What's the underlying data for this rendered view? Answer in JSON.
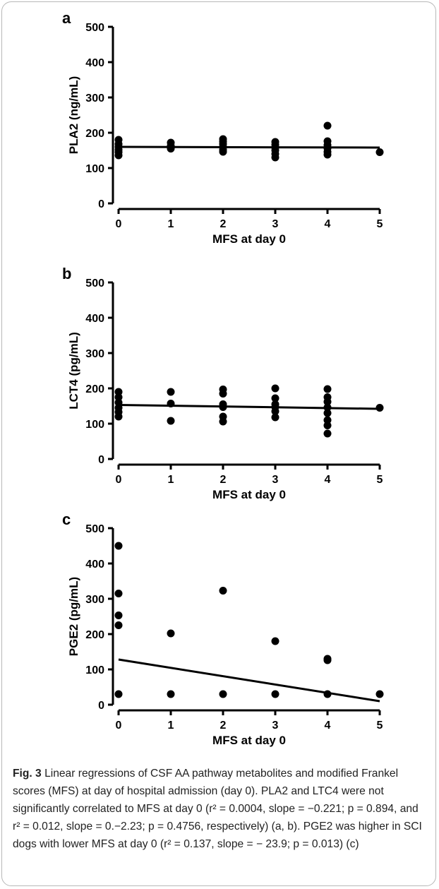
{
  "chart_data": [
    {
      "type": "scatter",
      "panel": "a",
      "xlabel": "MFS at day 0",
      "ylabel": "PLA2 (ng/mL)",
      "xlim": [
        0,
        5
      ],
      "ylim": [
        0,
        500
      ],
      "xticks": [
        0,
        1,
        2,
        3,
        4,
        5
      ],
      "yticks": [
        0,
        100,
        200,
        300,
        400,
        500
      ],
      "points": [
        {
          "x": 0,
          "y": 180
        },
        {
          "x": 0,
          "y": 168
        },
        {
          "x": 0,
          "y": 160
        },
        {
          "x": 0,
          "y": 152
        },
        {
          "x": 0,
          "y": 145
        },
        {
          "x": 0,
          "y": 136
        },
        {
          "x": 1,
          "y": 172
        },
        {
          "x": 1,
          "y": 163
        },
        {
          "x": 1,
          "y": 155
        },
        {
          "x": 2,
          "y": 182
        },
        {
          "x": 2,
          "y": 175
        },
        {
          "x": 2,
          "y": 168
        },
        {
          "x": 2,
          "y": 160
        },
        {
          "x": 2,
          "y": 152
        },
        {
          "x": 2,
          "y": 146
        },
        {
          "x": 3,
          "y": 174
        },
        {
          "x": 3,
          "y": 166
        },
        {
          "x": 3,
          "y": 158
        },
        {
          "x": 3,
          "y": 150
        },
        {
          "x": 3,
          "y": 140
        },
        {
          "x": 3,
          "y": 130
        },
        {
          "x": 4,
          "y": 220
        },
        {
          "x": 4,
          "y": 176
        },
        {
          "x": 4,
          "y": 165
        },
        {
          "x": 4,
          "y": 156
        },
        {
          "x": 4,
          "y": 146
        },
        {
          "x": 4,
          "y": 138
        },
        {
          "x": 5,
          "y": 145
        }
      ],
      "regression": {
        "x": [
          0,
          5
        ],
        "y": [
          160,
          158
        ]
      }
    },
    {
      "type": "scatter",
      "panel": "b",
      "xlabel": "MFS at day 0",
      "ylabel": "LCT4 (pg/mL)",
      "xlim": [
        0,
        5
      ],
      "ylim": [
        0,
        500
      ],
      "xticks": [
        0,
        1,
        2,
        3,
        4,
        5
      ],
      "yticks": [
        0,
        100,
        200,
        300,
        400,
        500
      ],
      "points": [
        {
          "x": 0,
          "y": 190
        },
        {
          "x": 0,
          "y": 175
        },
        {
          "x": 0,
          "y": 160
        },
        {
          "x": 0,
          "y": 145
        },
        {
          "x": 0,
          "y": 133
        },
        {
          "x": 0,
          "y": 120
        },
        {
          "x": 1,
          "y": 190
        },
        {
          "x": 1,
          "y": 157
        },
        {
          "x": 1,
          "y": 108
        },
        {
          "x": 2,
          "y": 197
        },
        {
          "x": 2,
          "y": 185
        },
        {
          "x": 2,
          "y": 155
        },
        {
          "x": 2,
          "y": 147
        },
        {
          "x": 2,
          "y": 120
        },
        {
          "x": 2,
          "y": 106
        },
        {
          "x": 3,
          "y": 200
        },
        {
          "x": 3,
          "y": 172
        },
        {
          "x": 3,
          "y": 155
        },
        {
          "x": 3,
          "y": 147
        },
        {
          "x": 3,
          "y": 135
        },
        {
          "x": 3,
          "y": 118
        },
        {
          "x": 4,
          "y": 198
        },
        {
          "x": 4,
          "y": 175
        },
        {
          "x": 4,
          "y": 162
        },
        {
          "x": 4,
          "y": 146
        },
        {
          "x": 4,
          "y": 130
        },
        {
          "x": 4,
          "y": 110
        },
        {
          "x": 4,
          "y": 95
        },
        {
          "x": 4,
          "y": 72
        },
        {
          "x": 5,
          "y": 145
        }
      ],
      "regression": {
        "x": [
          0,
          5
        ],
        "y": [
          153,
          142
        ]
      }
    },
    {
      "type": "scatter",
      "panel": "c",
      "xlabel": "MFS at day 0",
      "ylabel": "PGE2 (pg/mL)",
      "xlim": [
        0,
        5
      ],
      "ylim": [
        0,
        500
      ],
      "xticks": [
        0,
        1,
        2,
        3,
        4,
        5
      ],
      "yticks": [
        0,
        100,
        200,
        300,
        400,
        500
      ],
      "points": [
        {
          "x": 0,
          "y": 450
        },
        {
          "x": 0,
          "y": 315
        },
        {
          "x": 0,
          "y": 253
        },
        {
          "x": 0,
          "y": 225
        },
        {
          "x": 0,
          "y": 30
        },
        {
          "x": 1,
          "y": 202
        },
        {
          "x": 1,
          "y": 30
        },
        {
          "x": 2,
          "y": 323
        },
        {
          "x": 2,
          "y": 30
        },
        {
          "x": 3,
          "y": 180
        },
        {
          "x": 3,
          "y": 30
        },
        {
          "x": 4,
          "y": 130
        },
        {
          "x": 4,
          "y": 126
        },
        {
          "x": 4,
          "y": 30
        },
        {
          "x": 5,
          "y": 30
        }
      ],
      "regression": {
        "x": [
          0,
          5
        ],
        "y": [
          128,
          10
        ]
      }
    }
  ],
  "caption": {
    "fig_label": "Fig. 3",
    "text": "Linear regressions of CSF AA pathway metabolites and modified Frankel scores (MFS) at day of hospital admission (day 0). PLA2 and LTC4 were not significantly correlated to MFS at day 0 (r² = 0.0004, slope = −0.221; p = 0.894, and r² = 0.012, slope = 0.−2.23; p = 0.4756, respectively) (a, b). PGE2 was higher in SCI dogs with lower MFS at day 0 (r² = 0.137, slope = − 23.9; p = 0.013) (c)"
  },
  "colors": {
    "marks": "#000000",
    "frame": "#b7b7b7",
    "caption_text": "#222222"
  }
}
